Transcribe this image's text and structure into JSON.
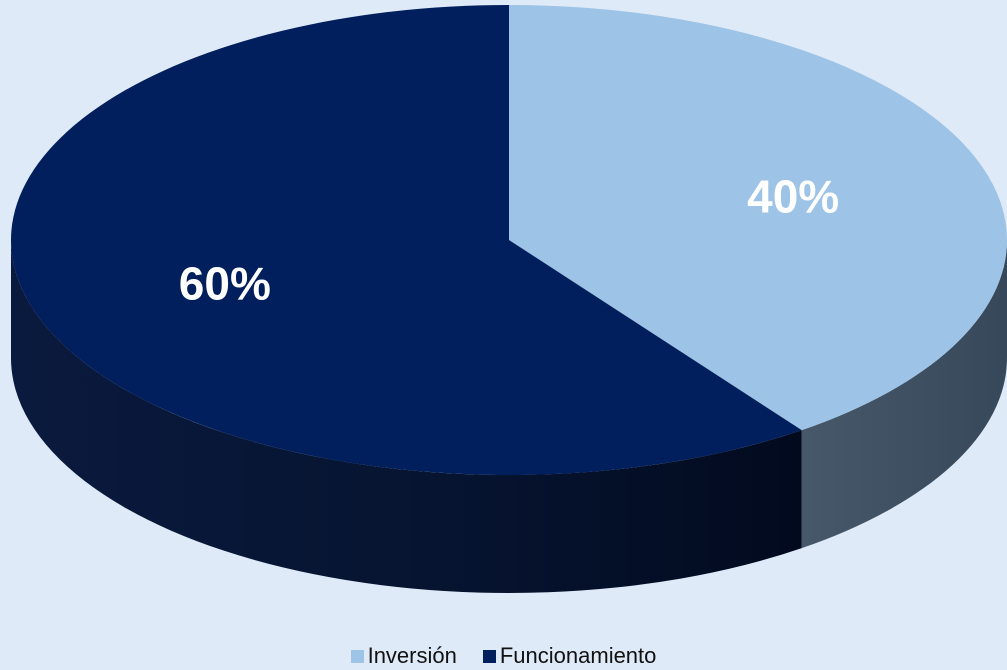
{
  "chart_data": {
    "type": "pie",
    "categories": [
      "Inversión",
      "Funcionamiento"
    ],
    "values": [
      40,
      60
    ],
    "labels": [
      "40%",
      "60%"
    ],
    "colors": [
      "#9dc3e6",
      "#001f5c"
    ],
    "legend_placement": "bottom"
  },
  "legend": {
    "items": [
      {
        "label": "Inversión",
        "color": "#9dc3e6"
      },
      {
        "label": "Funcionamiento",
        "color": "#001f5c"
      }
    ]
  }
}
